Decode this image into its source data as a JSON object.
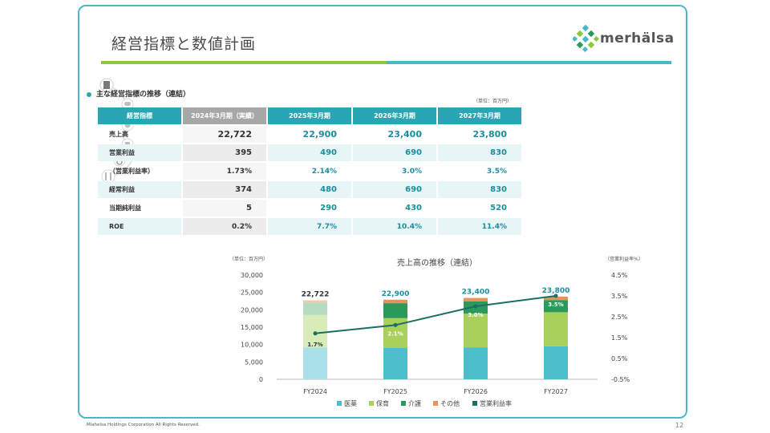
{
  "page": {
    "title": "経営指標と数値計画",
    "logo_text": "merhälsa",
    "footer": "Miahelsa Holdings Corporation All Rights Reserved.",
    "page_number": "12"
  },
  "table": {
    "heading": "主な経営指標の推移（連結）",
    "unit": "（単位：百万円）",
    "headers": [
      "経営指標",
      "2024年3月期（実績）",
      "2025年3月期",
      "2026年3月期",
      "2027年3月期"
    ],
    "rows": [
      {
        "label": "売上高",
        "values": [
          "22,722",
          "22,900",
          "23,400",
          "23,800"
        ]
      },
      {
        "label": "営業利益",
        "values": [
          "395",
          "490",
          "690",
          "830"
        ]
      },
      {
        "label": "（営業利益率）",
        "values": [
          "1.73%",
          "2.14%",
          "3.0%",
          "3.5%"
        ]
      },
      {
        "label": "経常利益",
        "values": [
          "374",
          "480",
          "690",
          "830"
        ]
      },
      {
        "label": "当期純利益",
        "values": [
          "5",
          "290",
          "430",
          "520"
        ]
      },
      {
        "label": "ROE",
        "values": [
          "0.2%",
          "7.7%",
          "10.4%",
          "11.4%"
        ]
      }
    ]
  },
  "chart_data": {
    "type": "bar",
    "title": "売上高の推移（連結）",
    "left_unit": "（単位：百万円）",
    "right_unit": "（営業利益率%）",
    "categories": [
      "FY2024",
      "FY2025",
      "FY2026",
      "FY2027"
    ],
    "totals": [
      22722,
      22900,
      23400,
      23800
    ],
    "total_labels": [
      "22,722",
      "22,900",
      "23,400",
      "23,800"
    ],
    "series": [
      {
        "name": "医薬",
        "values": [
          9200,
          9000,
          9200,
          9500
        ],
        "color": "#4bbfcb"
      },
      {
        "name": "保育",
        "values": [
          9300,
          8600,
          9700,
          9800
        ],
        "color": "#a8d05a"
      },
      {
        "name": "介護",
        "values": [
          3600,
          4300,
          3500,
          3500
        ],
        "color": "#2a9a5a"
      },
      {
        "name": "その他",
        "values": [
          622,
          1000,
          1000,
          1000
        ],
        "color": "#e8915a"
      }
    ],
    "margin_series": {
      "name": "営業利益率",
      "values": [
        1.7,
        2.1,
        3.0,
        3.5
      ],
      "labels": [
        "1.7%",
        "2.1%",
        "3.0%",
        "3.5%"
      ],
      "color": "#1d6e64"
    },
    "y_left": {
      "min": 0,
      "max": 30000,
      "ticks": [
        "0",
        "5,000",
        "10,000",
        "15,000",
        "20,000",
        "25,000",
        "30,000"
      ]
    },
    "y_right": {
      "min": -0.5,
      "max": 4.5,
      "ticks": [
        "-0.5%",
        "0.5%",
        "1.5%",
        "2.5%",
        "3.5%",
        "4.5%"
      ]
    },
    "legend": [
      "医薬",
      "保育",
      "介護",
      "その他",
      "営業利益率"
    ],
    "legend_position": "bottom"
  }
}
